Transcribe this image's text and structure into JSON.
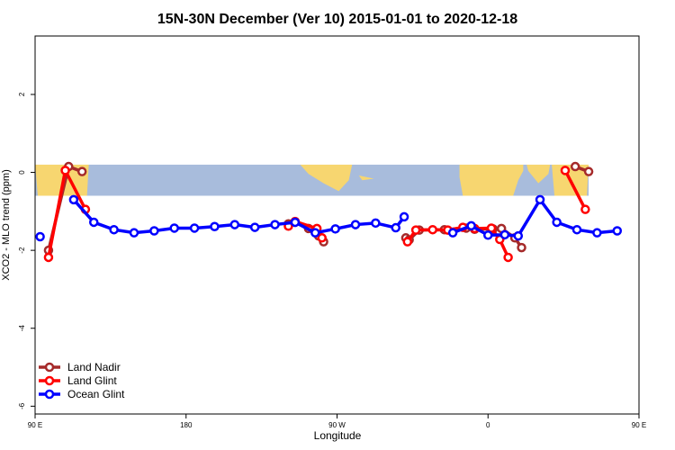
{
  "chart_data": {
    "type": "line",
    "title": "15N-30N December (Ver 10)   2015-01-01 to 2020-12-18",
    "xlabel": "Longitude",
    "ylabel": "XCO2 - MLO trend (ppm)",
    "xlim": [
      90,
      450
    ],
    "ylim": [
      -6.2,
      3.5
    ],
    "xticks": [
      {
        "value": 90,
        "label": "90 E"
      },
      {
        "value": 180,
        "label": "180"
      },
      {
        "value": 270,
        "label": "90 W"
      },
      {
        "value": 360,
        "label": "0"
      },
      {
        "value": 450,
        "label": "90 E"
      },
      {
        "value": 540,
        "label": "180"
      }
    ],
    "yticks": [
      {
        "value": 2,
        "label": "2"
      },
      {
        "value": 0,
        "label": "0"
      },
      {
        "value": -2,
        "label": "-2"
      },
      {
        "value": -4,
        "label": "-4"
      },
      {
        "value": -6,
        "label": "-6"
      }
    ],
    "map_band": {
      "lat_range": "15N-30N",
      "y_range": [
        -0.6,
        0.2
      ],
      "ocean_color": "#a8bcdc",
      "land_color": "#f7d670"
    },
    "legend_position": "bottom-left",
    "series": [
      {
        "name": "Land Nadir",
        "color": "#a52a2a",
        "points": [
          [
            98,
            -2.0
          ],
          [
            110,
            0.15
          ],
          [
            118,
            0.02
          ],
          [
            241,
            -1.32
          ],
          [
            245,
            -1.28
          ],
          [
            253,
            -1.44
          ],
          [
            259,
            -1.63
          ],
          [
            262,
            -1.78
          ],
          [
            311,
            -1.68
          ],
          [
            313,
            -1.73
          ],
          [
            319,
            -1.48
          ],
          [
            334,
            -1.47
          ],
          [
            347,
            -1.43
          ],
          [
            352,
            -1.46
          ],
          [
            363,
            -1.45
          ],
          [
            368,
            -1.44
          ],
          [
            376,
            -1.68
          ],
          [
            380,
            -1.93
          ],
          [
            412,
            0.15
          ],
          [
            420,
            0.02
          ]
        ]
      },
      {
        "name": "Land Glint",
        "color": "#ff0000",
        "points": [
          [
            98,
            -2.18
          ],
          [
            108,
            0.05
          ],
          [
            120,
            -0.95
          ],
          [
            241,
            -1.38
          ],
          [
            245,
            -1.26
          ],
          [
            258,
            -1.44
          ],
          [
            261,
            -1.68
          ],
          [
            312,
            -1.78
          ],
          [
            317,
            -1.48
          ],
          [
            327,
            -1.47
          ],
          [
            336,
            -1.48
          ],
          [
            345,
            -1.41
          ],
          [
            352,
            -1.44
          ],
          [
            362,
            -1.43
          ],
          [
            367,
            -1.72
          ],
          [
            372,
            -2.18
          ],
          [
            406,
            0.05
          ],
          [
            418,
            -0.95
          ]
        ]
      },
      {
        "name": "Ocean Glint",
        "color": "#0000ff",
        "points": [
          [
            93,
            -1.65
          ],
          [
            113,
            -0.7
          ],
          [
            125,
            -1.28
          ],
          [
            137,
            -1.47
          ],
          [
            149,
            -1.55
          ],
          [
            161,
            -1.5
          ],
          [
            173,
            -1.43
          ],
          [
            185,
            -1.43
          ],
          [
            197,
            -1.39
          ],
          [
            209,
            -1.34
          ],
          [
            221,
            -1.41
          ],
          [
            233,
            -1.34
          ],
          [
            245,
            -1.28
          ],
          [
            257,
            -1.55
          ],
          [
            269,
            -1.45
          ],
          [
            281,
            -1.34
          ],
          [
            293,
            -1.3
          ],
          [
            305,
            -1.42
          ],
          [
            310,
            -1.14
          ],
          [
            339,
            -1.55
          ],
          [
            350,
            -1.37
          ],
          [
            360,
            -1.61
          ],
          [
            370,
            -1.6
          ],
          [
            378,
            -1.63
          ],
          [
            391,
            -0.7
          ],
          [
            401,
            -1.28
          ],
          [
            413,
            -1.47
          ],
          [
            425,
            -1.55
          ],
          [
            437,
            -1.5
          ]
        ]
      }
    ]
  }
}
